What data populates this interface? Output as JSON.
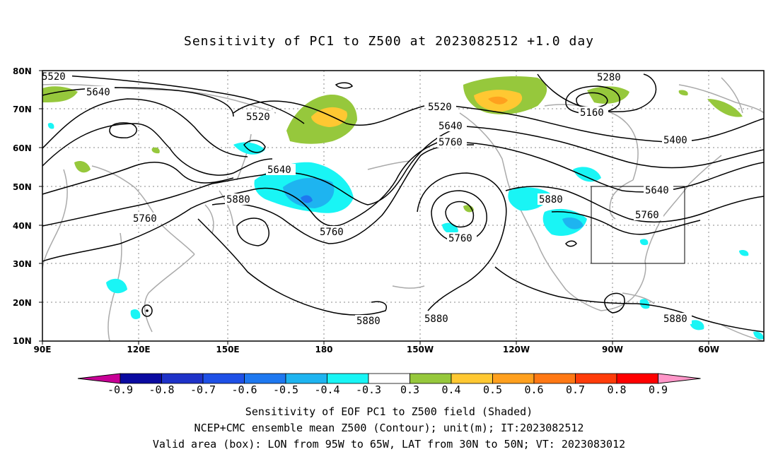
{
  "title": "Sensitivity of PC1 to Z500 at 2023082512 +1.0 day",
  "lat_labels": [
    "80N",
    "70N",
    "60N",
    "50N",
    "40N",
    "30N",
    "20N",
    "10N"
  ],
  "lon_labels": [
    "90E",
    "120E",
    "150E",
    "180",
    "150W",
    "120W",
    "90W",
    "60W"
  ],
  "contour_labels": [
    "5520",
    "5640",
    "5520",
    "5640",
    "5880",
    "5760",
    "5760",
    "5520",
    "5640",
    "5760",
    "5760",
    "5280",
    "5160",
    "5400",
    "5640",
    "5880",
    "5760",
    "5880",
    "5880",
    "5880"
  ],
  "colorbar": {
    "labels": [
      "-0.9",
      "-0.8",
      "-0.7",
      "-0.6",
      "-0.5",
      "-0.4",
      "-0.3",
      "0.3",
      "0.4",
      "0.5",
      "0.6",
      "0.7",
      "0.8",
      "0.9"
    ],
    "colors": [
      "#0a0aa0",
      "#1e32c8",
      "#1e50e6",
      "#1e78f0",
      "#1eb4f0",
      "#19f5f5",
      "#ffffff",
      "#96c83c",
      "#ffc832",
      "#ffa01e",
      "#ff7814",
      "#ff3c0a",
      "#ff0000"
    ],
    "left_tip_color": "#c80096",
    "right_tip_color": "#ff96c8"
  },
  "captions": [
    "Sensitivity of EOF PC1 to Z500 field (Shaded)",
    "NCEP+CMC ensemble mean Z500 (Contour); unit(m); IT:2023082512",
    "Valid area (box): LON from 95W to 65W, LAT from 30N to 50N; VT: 2023083012"
  ]
}
